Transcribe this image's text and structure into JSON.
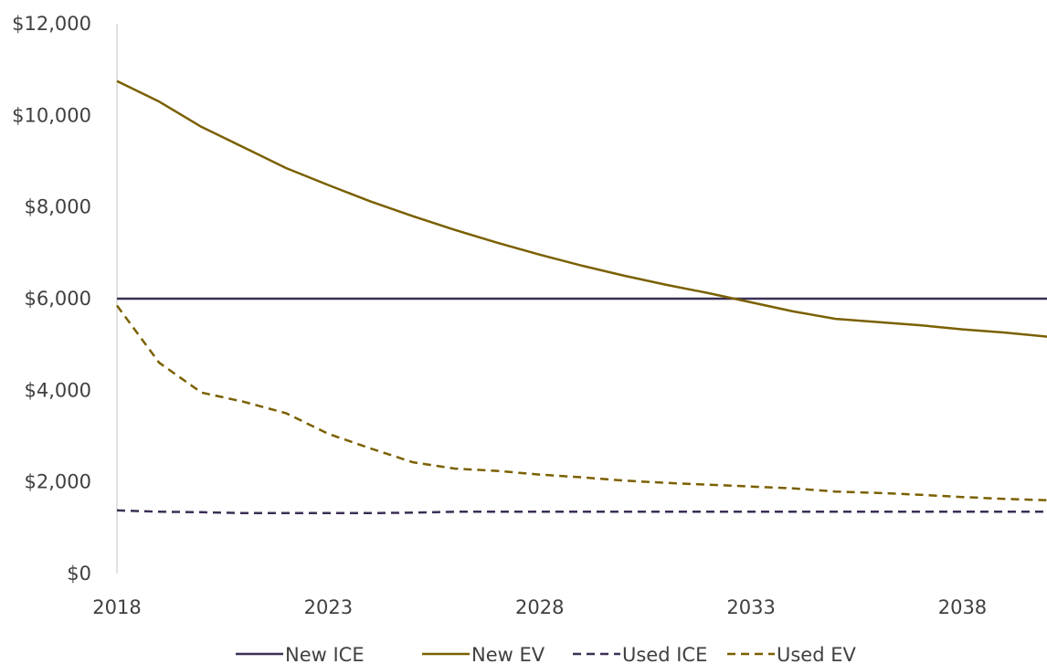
{
  "chart_data": {
    "type": "line",
    "title": "",
    "xlabel": "",
    "ylabel": "",
    "x": [
      2018,
      2019,
      2020,
      2021,
      2022,
      2023,
      2024,
      2025,
      2026,
      2027,
      2028,
      2029,
      2030,
      2031,
      2032,
      2033,
      2034,
      2035,
      2036,
      2037,
      2038,
      2039,
      2040
    ],
    "xlim": [
      2018,
      2040
    ],
    "ylim": [
      0,
      12000
    ],
    "x_ticks": [
      "2018",
      "2023",
      "2028",
      "2033",
      "2038"
    ],
    "x_tick_values": [
      2018,
      2023,
      2028,
      2033,
      2038
    ],
    "y_ticks": [
      "$0",
      "$2,000",
      "$4,000",
      "$6,000",
      "$8,000",
      "$10,000",
      "$12,000"
    ],
    "y_tick_values": [
      0,
      2000,
      4000,
      6000,
      8000,
      10000,
      12000
    ],
    "grid": false,
    "legend_position": "bottom",
    "series": [
      {
        "name": "New ICE",
        "color": "#3b2f55",
        "dash": "solid",
        "values": [
          6000,
          6000,
          6000,
          6000,
          6000,
          6000,
          6000,
          6000,
          6000,
          6000,
          6000,
          6000,
          6000,
          6000,
          6000,
          6000,
          6000,
          6000,
          6000,
          6000,
          6000,
          6000,
          6000
        ]
      },
      {
        "name": "New EV",
        "color": "#7a6000",
        "dash": "solid",
        "values": [
          10750,
          10300,
          9750,
          9300,
          8850,
          8480,
          8120,
          7800,
          7500,
          7220,
          6960,
          6720,
          6500,
          6300,
          6120,
          5920,
          5720,
          5560,
          5490,
          5420,
          5330,
          5260,
          5170
        ]
      },
      {
        "name": "Used ICE",
        "color": "#3b2f55",
        "dash": "dashed",
        "values": [
          1380,
          1350,
          1340,
          1320,
          1320,
          1320,
          1320,
          1330,
          1350,
          1350,
          1350,
          1350,
          1350,
          1350,
          1350,
          1350,
          1350,
          1350,
          1350,
          1350,
          1350,
          1350,
          1350
        ]
      },
      {
        "name": "Used EV",
        "color": "#7a6000",
        "dash": "dashed",
        "values": [
          5850,
          4600,
          3950,
          3750,
          3500,
          3050,
          2730,
          2430,
          2290,
          2240,
          2160,
          2100,
          2030,
          1980,
          1940,
          1900,
          1860,
          1790,
          1760,
          1720,
          1670,
          1630,
          1600
        ]
      }
    ]
  }
}
